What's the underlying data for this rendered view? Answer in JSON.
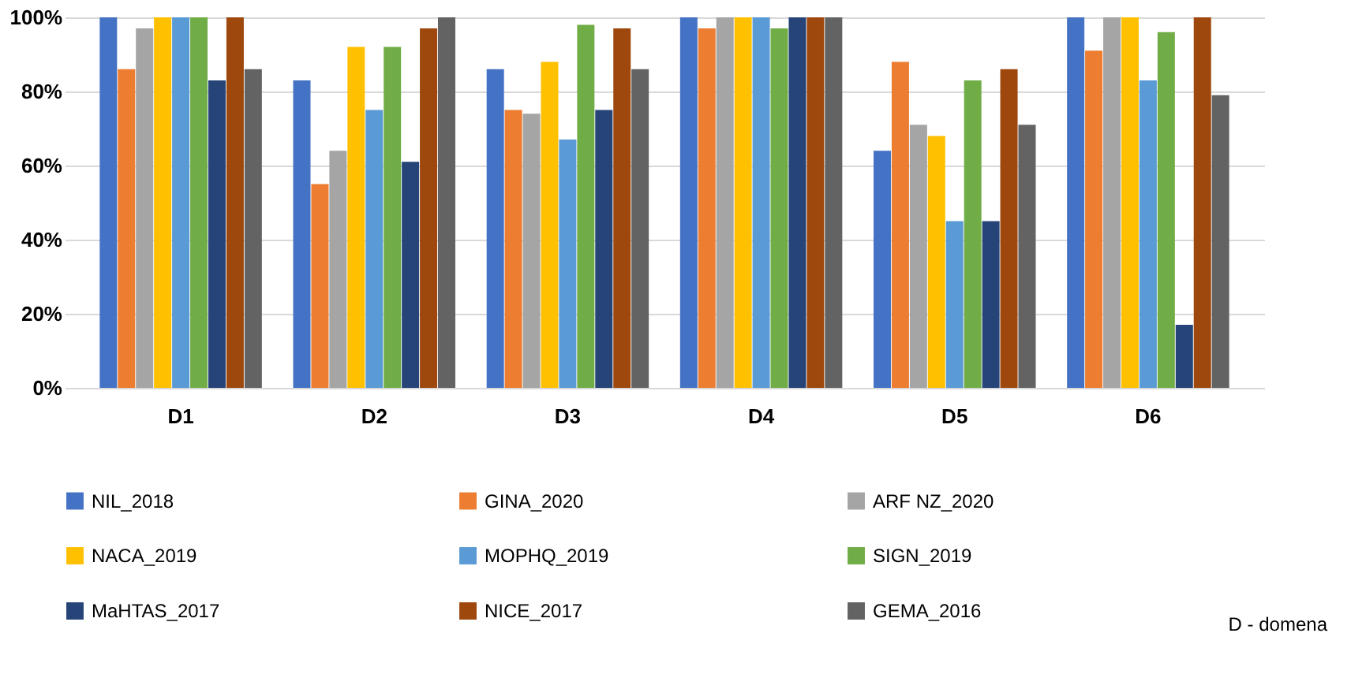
{
  "chart_data": {
    "type": "bar",
    "categories": [
      "D1",
      "D2",
      "D3",
      "D4",
      "D5",
      "D6"
    ],
    "series": [
      {
        "name": "NIL_2018",
        "color": "#4472c4",
        "values": [
          100,
          83,
          86,
          100,
          64,
          100
        ]
      },
      {
        "name": "GINA_2020",
        "color": "#ed7d31",
        "values": [
          86,
          55,
          75,
          97,
          88,
          91
        ]
      },
      {
        "name": "ARF NZ_2020",
        "color": "#a5a5a5",
        "values": [
          97,
          64,
          74,
          100,
          71,
          100
        ]
      },
      {
        "name": "NACA_2019",
        "color": "#ffc000",
        "values": [
          100,
          92,
          88,
          100,
          68,
          100
        ]
      },
      {
        "name": "MOPHQ_2019",
        "color": "#5b9bd5",
        "values": [
          100,
          75,
          67,
          100,
          45,
          83
        ]
      },
      {
        "name": "SIGN_2019",
        "color": "#70ad47",
        "values": [
          100,
          92,
          98,
          97,
          83,
          96
        ]
      },
      {
        "name": "MaHTAS_2017",
        "color": "#264478",
        "values": [
          83,
          61,
          75,
          100,
          45,
          17
        ]
      },
      {
        "name": "NICE_2017",
        "color": "#9e480e",
        "values": [
          100,
          97,
          97,
          100,
          86,
          100
        ]
      },
      {
        "name": "GEMA_2016",
        "color": "#636363",
        "values": [
          86,
          100,
          86,
          100,
          71,
          79
        ]
      }
    ],
    "ylim": [
      0,
      100
    ],
    "yticks": [
      {
        "value": 0,
        "label": "0%"
      },
      {
        "value": 20,
        "label": "20%"
      },
      {
        "value": 40,
        "label": "40%"
      },
      {
        "value": 60,
        "label": "60%"
      },
      {
        "value": 80,
        "label": "80%"
      },
      {
        "value": 100,
        "label": "100%"
      }
    ],
    "grid": "y",
    "legend": "bottom",
    "annotations": [
      "D - domena"
    ]
  }
}
